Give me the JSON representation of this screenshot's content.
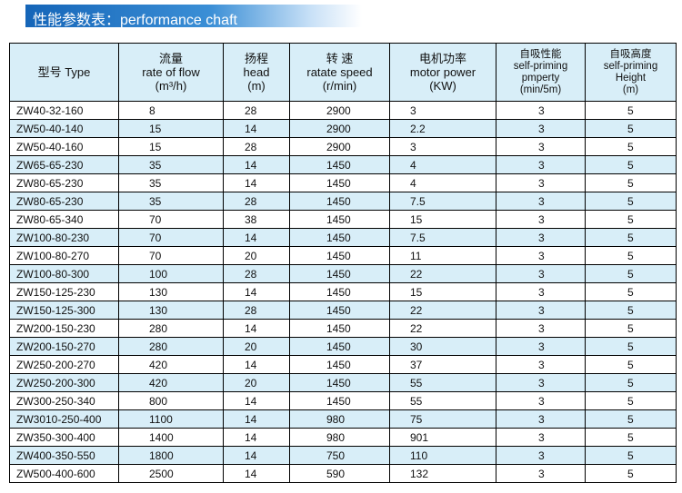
{
  "header": {
    "title": "性能参数表：performance chaft"
  },
  "table": {
    "columns": [
      [
        "型号  Type"
      ],
      [
        "流量",
        "rate of flow",
        "(m³/h)"
      ],
      [
        "扬程",
        "head",
        "(m)"
      ],
      [
        "转 速",
        "ratate speed",
        "(r/min)"
      ],
      [
        "电机功率",
        "motor power",
        "(KW)"
      ],
      [
        "自吸性能",
        "self-priming",
        "pmperty",
        "(min/5m)"
      ],
      [
        "自吸高度",
        "self-priming",
        "Height",
        "(m)"
      ]
    ],
    "rows": [
      [
        "ZW40-32-160",
        8,
        28,
        2900,
        3,
        3,
        5
      ],
      [
        "ZW50-40-140",
        15,
        14,
        2900,
        2.2,
        3,
        5
      ],
      [
        "ZW50-40-160",
        15,
        28,
        2900,
        3,
        3,
        5
      ],
      [
        "ZW65-65-230",
        35,
        14,
        1450,
        4,
        3,
        5
      ],
      [
        "ZW80-65-230",
        35,
        14,
        1450,
        4,
        3,
        5
      ],
      [
        "ZW80-65-230",
        35,
        28,
        1450,
        7.5,
        3,
        5
      ],
      [
        "ZW80-65-340",
        70,
        38,
        1450,
        15,
        3,
        5
      ],
      [
        "ZW100-80-230",
        70,
        14,
        1450,
        7.5,
        3,
        5
      ],
      [
        "ZW100-80-270",
        70,
        20,
        1450,
        11,
        3,
        5
      ],
      [
        "ZW100-80-300",
        100,
        28,
        1450,
        22,
        3,
        5
      ],
      [
        "ZW150-125-230",
        130,
        14,
        1450,
        15,
        3,
        5
      ],
      [
        "ZW150-125-300",
        130,
        28,
        1450,
        22,
        3,
        5
      ],
      [
        "ZW200-150-230",
        280,
        14,
        1450,
        22,
        3,
        5
      ],
      [
        "ZW200-150-270",
        280,
        20,
        1450,
        30,
        3,
        5
      ],
      [
        "ZW250-200-270",
        420,
        14,
        1450,
        37,
        3,
        5
      ],
      [
        "ZW250-200-300",
        420,
        20,
        1450,
        55,
        3,
        5
      ],
      [
        "ZW300-250-340",
        800,
        14,
        1450,
        55,
        3,
        5
      ],
      [
        "ZW3010-250-400",
        1100,
        14,
        980,
        75,
        3,
        5
      ],
      [
        "ZW350-300-400",
        1400,
        14,
        980,
        901,
        3,
        5
      ],
      [
        "ZW400-350-550",
        1800,
        14,
        750,
        110,
        3,
        5
      ],
      [
        "ZW500-400-600",
        2500,
        14,
        590,
        132,
        3,
        5
      ]
    ]
  }
}
